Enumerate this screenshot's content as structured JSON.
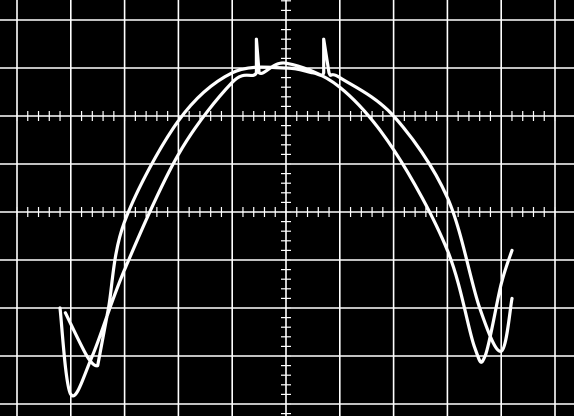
{
  "chart_data": {
    "type": "line",
    "title": "",
    "xlabel": "",
    "ylabel": "",
    "grid": true,
    "grid_divisions": {
      "x": 10,
      "y": 8
    },
    "minor_ticks_per_division": 5,
    "xlim": [
      -5,
      5
    ],
    "ylim": [
      -4,
      4
    ],
    "colors": {
      "screen": "#000000",
      "graticule": "#ffffff",
      "trace": "#ffffff"
    },
    "series": [
      {
        "x": [
          -4.2,
          -4.0,
          -3.6,
          -3.0,
          -2.0,
          -1.0,
          -0.55,
          -0.55,
          -0.5,
          0.0,
          1.0,
          2.0,
          3.0,
          3.5,
          3.7,
          4.0,
          4.2
        ],
        "y": [
          -2.0,
          -3.8,
          -3.0,
          -1.2,
          1.2,
          2.7,
          2.9,
          3.6,
          2.9,
          3.1,
          2.6,
          1.3,
          -0.8,
          -2.8,
          -3.0,
          -1.5,
          -0.8
        ]
      },
      {
        "x": [
          -4.1,
          -3.7,
          -3.5,
          -3.45,
          -3.3,
          -3.0,
          -2.0,
          -1.0,
          0.0,
          0.5,
          0.7,
          0.7,
          0.8,
          1.0,
          2.0,
          3.0,
          3.6,
          4.0,
          4.2
        ],
        "y": [
          -2.1,
          -3.0,
          -3.2,
          -2.9,
          -2.0,
          -0.2,
          1.9,
          2.9,
          3.0,
          2.9,
          2.9,
          3.6,
          2.9,
          2.8,
          2.0,
          0.3,
          -2.0,
          -2.9,
          -1.8
        ]
      }
    ]
  }
}
